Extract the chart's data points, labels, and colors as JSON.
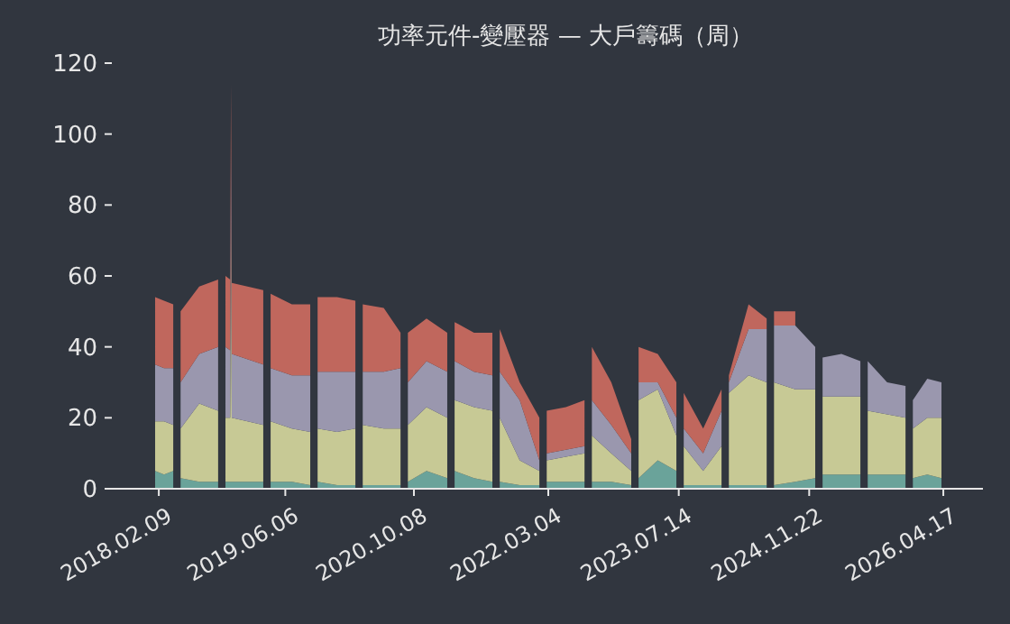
{
  "chart_data": {
    "type": "area",
    "stacked": true,
    "title": "功率元件-變壓器 — 大戶籌碼（周）",
    "x": [
      "2018-01-26",
      "2018-03-01",
      "2018-04-05",
      "2018-04-19",
      "2018-05-03",
      "2018-07-13",
      "2018-09-23",
      "2018-10-07",
      "2018-10-21",
      "2018-11-08",
      "2018-11-11",
      "2018-11-14",
      "2019-03-14",
      "2019-03-28",
      "2019-04-11",
      "2019-07-01",
      "2019-09-09",
      "2019-09-23",
      "2019-10-07",
      "2019-12-20",
      "2020-02-28",
      "2020-03-13",
      "2020-03-27",
      "2020-06-15",
      "2020-08-18",
      "2020-09-01",
      "2020-09-15",
      "2020-11-25",
      "2021-02-12",
      "2021-02-26",
      "2021-03-12",
      "2021-05-25",
      "2021-08-03",
      "2021-08-17",
      "2021-08-31",
      "2021-11-15",
      "2022-01-29",
      "2022-02-12",
      "2022-02-26",
      "2022-05-10",
      "2022-07-20",
      "2022-08-03",
      "2022-08-17",
      "2022-10-30",
      "2023-01-14",
      "2023-01-28",
      "2023-02-11",
      "2023-04-25",
      "2023-07-05",
      "2023-07-19",
      "2023-08-02",
      "2023-10-15",
      "2023-12-24",
      "2024-01-07",
      "2024-01-21",
      "2024-04-05",
      "2024-06-13",
      "2024-06-27",
      "2024-07-11",
      "2024-09-30",
      "2024-12-15",
      "2024-12-29",
      "2025-01-12",
      "2025-03-25",
      "2025-06-05",
      "2025-06-19",
      "2025-07-03",
      "2025-09-15",
      "2025-11-24",
      "2025-12-08",
      "2025-12-22",
      "2026-02-15",
      "2026-04-10"
    ],
    "series": [
      {
        "color": "#6aa39a",
        "values": [
          5,
          4,
          5,
          null,
          3,
          2,
          2,
          null,
          2,
          2,
          2,
          2,
          2,
          null,
          2,
          2,
          1,
          null,
          2,
          1,
          1,
          null,
          1,
          1,
          1,
          null,
          2,
          5,
          3,
          null,
          5,
          3,
          2,
          null,
          2,
          1,
          1,
          null,
          2,
          2,
          2,
          null,
          2,
          2,
          1,
          null,
          3,
          8,
          5,
          null,
          1,
          1,
          1,
          null,
          1,
          1,
          1,
          null,
          1,
          2,
          3,
          null,
          4,
          4,
          4,
          null,
          4,
          4,
          4,
          null,
          3,
          4,
          3
        ]
      },
      {
        "color": "#c7c995",
        "values": [
          14,
          15,
          13,
          null,
          14,
          22,
          20,
          null,
          18,
          18,
          73,
          18,
          16,
          null,
          17,
          15,
          15,
          null,
          15,
          15,
          16,
          null,
          17,
          16,
          16,
          null,
          16,
          18,
          17,
          null,
          20,
          20,
          20,
          null,
          18,
          7,
          4,
          null,
          6,
          7,
          8,
          null,
          13,
          8,
          4,
          null,
          22,
          20,
          10,
          null,
          11,
          4,
          11,
          null,
          26,
          31,
          29,
          null,
          29,
          26,
          25,
          null,
          22,
          22,
          22,
          null,
          18,
          17,
          16,
          null,
          14,
          16,
          17
        ]
      },
      {
        "color": "#9a97ae",
        "values": [
          16,
          15,
          16,
          null,
          13,
          14,
          18,
          null,
          20,
          19,
          20,
          18,
          17,
          null,
          15,
          15,
          16,
          null,
          16,
          17,
          16,
          null,
          15,
          16,
          17,
          null,
          12,
          13,
          13,
          null,
          11,
          10,
          10,
          null,
          13,
          17,
          3,
          null,
          2,
          2,
          2,
          null,
          10,
          8,
          5,
          null,
          5,
          2,
          5,
          null,
          5,
          5,
          10,
          null,
          3,
          13,
          15,
          null,
          16,
          18,
          12,
          null,
          11,
          12,
          10,
          null,
          14,
          9,
          9,
          null,
          8,
          11,
          10
        ]
      },
      {
        "color": "#c0675d",
        "values": [
          19,
          19,
          18,
          null,
          20,
          19,
          19,
          null,
          20,
          20,
          19,
          20,
          21,
          null,
          21,
          20,
          20,
          null,
          21,
          21,
          20,
          null,
          19,
          18,
          10,
          null,
          14,
          12,
          11,
          null,
          11,
          11,
          12,
          null,
          12,
          5,
          12,
          null,
          12,
          12,
          13,
          null,
          15,
          12,
          4,
          null,
          10,
          8,
          10,
          null,
          10,
          7,
          6,
          null,
          2,
          7,
          3,
          null,
          4,
          4,
          null,
          null,
          null,
          null,
          null,
          null,
          null,
          null,
          null,
          null,
          null,
          null,
          null
        ]
      }
    ],
    "xlim": [
      "2017-08-14",
      "2026-09-15"
    ],
    "xticks": [
      {
        "value": "2018-02-09",
        "label": "2018.02.09"
      },
      {
        "value": "2019-06-06",
        "label": "2019.06.06"
      },
      {
        "value": "2020-10-08",
        "label": "2020.10.08"
      },
      {
        "value": "2022-03-04",
        "label": "2022.03.04"
      },
      {
        "value": "2023-07-14",
        "label": "2023.07.14"
      },
      {
        "value": "2024-11-22",
        "label": "2024.11.22"
      },
      {
        "value": "2026-04-17",
        "label": "2026.04.17"
      }
    ],
    "ylim": [
      0,
      120
    ],
    "yticks": [
      0,
      20,
      40,
      60,
      80,
      100,
      120
    ],
    "grid": false
  }
}
